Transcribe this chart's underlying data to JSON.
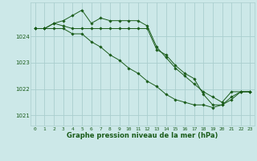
{
  "title": "Graphe pression niveau de la mer (hPa)",
  "bg_color": "#cce8e8",
  "grid_color": "#aacece",
  "line_color": "#1a5c1a",
  "xlim": [
    -0.5,
    23.5
  ],
  "ylim": [
    1020.6,
    1025.3
  ],
  "yticks": [
    1021,
    1022,
    1023,
    1024
  ],
  "xticks": [
    0,
    1,
    2,
    3,
    4,
    5,
    6,
    7,
    8,
    9,
    10,
    11,
    12,
    13,
    14,
    15,
    16,
    17,
    18,
    19,
    20,
    21,
    22,
    23
  ],
  "series1": [
    1024.3,
    1024.3,
    1024.5,
    1024.6,
    1024.8,
    1025.0,
    1024.5,
    1024.7,
    1024.6,
    1024.6,
    1024.6,
    1024.6,
    1024.4,
    1023.6,
    1023.2,
    1022.8,
    1022.5,
    1022.2,
    1021.9,
    1021.7,
    1021.5,
    1021.9,
    1021.9,
    1021.9
  ],
  "series2": [
    1024.3,
    1024.3,
    1024.3,
    1024.3,
    1024.1,
    1024.1,
    1023.8,
    1023.6,
    1023.3,
    1023.1,
    1022.8,
    1022.6,
    1022.3,
    1022.1,
    1021.8,
    1021.6,
    1021.5,
    1021.4,
    1021.4,
    1021.3,
    1021.4,
    1021.6,
    1021.9,
    1021.9
  ],
  "series3": [
    1024.3,
    1024.3,
    1024.5,
    1024.4,
    1024.3,
    1024.3,
    1024.3,
    1024.3,
    1024.3,
    1024.3,
    1024.3,
    1024.3,
    1024.3,
    1023.5,
    1023.3,
    1022.9,
    1022.6,
    1022.4,
    1021.8,
    1021.4,
    1021.4,
    1021.7,
    1021.9,
    1021.9
  ],
  "xlabel_fontsize": 6.0,
  "ylabel_fontsize": 5.0,
  "tick_fontsize": 4.5,
  "linewidth": 0.7,
  "markersize": 1.8
}
